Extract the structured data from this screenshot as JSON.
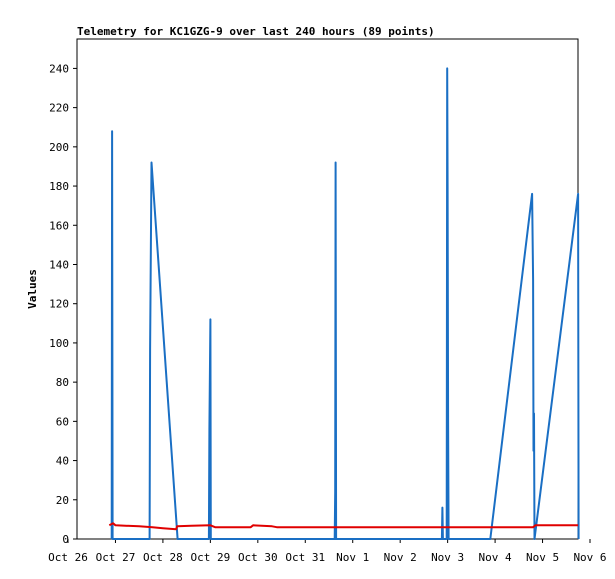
{
  "chart_data": {
    "type": "line",
    "title": "Telemetry for KC1GZG-9 over last 240 hours (89 points)",
    "xlabel": "",
    "ylabel": "Values",
    "x_domain_days": [
      0,
      11
    ],
    "ylim": [
      0,
      255
    ],
    "x_ticks": [
      {
        "day": 0,
        "label": "Oct 26"
      },
      {
        "day": 1,
        "label": "Oct 27"
      },
      {
        "day": 2,
        "label": "Oct 28"
      },
      {
        "day": 3,
        "label": "Oct 29"
      },
      {
        "day": 4,
        "label": "Oct 30"
      },
      {
        "day": 5,
        "label": "Oct 31"
      },
      {
        "day": 6,
        "label": "Nov 1"
      },
      {
        "day": 7,
        "label": "Nov 2"
      },
      {
        "day": 8,
        "label": "Nov 3"
      },
      {
        "day": 9,
        "label": "Nov 4"
      },
      {
        "day": 10,
        "label": "Nov 5"
      },
      {
        "day": 11,
        "label": "Nov 6"
      }
    ],
    "y_ticks": [
      0,
      20,
      40,
      60,
      80,
      100,
      120,
      140,
      160,
      180,
      200,
      220,
      240
    ],
    "colors": {
      "series1": "#1a6fc4",
      "series2": "#e00000"
    },
    "series": [
      {
        "color": "#1a6fc4",
        "points": [
          [
            0.92,
            0
          ],
          [
            0.93,
            208
          ],
          [
            0.94,
            0
          ],
          [
            1.72,
            0
          ],
          [
            1.73,
            97
          ],
          [
            1.76,
            192
          ],
          [
            2.31,
            0
          ],
          [
            2.97,
            0
          ],
          [
            2.98,
            56
          ],
          [
            3.0,
            112
          ],
          [
            3.01,
            0
          ],
          [
            5.62,
            0
          ],
          [
            5.63,
            24
          ],
          [
            5.64,
            192
          ],
          [
            5.65,
            0
          ],
          [
            7.88,
            0
          ],
          [
            7.89,
            16
          ],
          [
            7.9,
            0
          ],
          [
            7.98,
            0
          ],
          [
            7.99,
            240
          ],
          [
            8.0,
            180
          ],
          [
            8.01,
            60
          ],
          [
            8.02,
            0
          ],
          [
            8.9,
            0
          ],
          [
            9.78,
            176
          ],
          [
            9.8,
            132
          ],
          [
            9.81,
            45
          ],
          [
            9.82,
            64
          ],
          [
            9.83,
            0
          ],
          [
            10.75,
            176
          ],
          [
            10.76,
            0
          ]
        ]
      },
      {
        "color": "#e00000",
        "points": [
          [
            0.87,
            7
          ],
          [
            0.95,
            8
          ],
          [
            1.0,
            7
          ],
          [
            1.5,
            6.5
          ],
          [
            1.78,
            6
          ],
          [
            2.0,
            5.5
          ],
          [
            2.28,
            5
          ],
          [
            2.3,
            6.5
          ],
          [
            2.6,
            6.8
          ],
          [
            3.0,
            7
          ],
          [
            3.1,
            6
          ],
          [
            3.85,
            6
          ],
          [
            3.9,
            7
          ],
          [
            4.3,
            6.5
          ],
          [
            4.4,
            6
          ],
          [
            5.0,
            6
          ],
          [
            6.0,
            6
          ],
          [
            6.5,
            6
          ],
          [
            7.0,
            6
          ],
          [
            7.5,
            6
          ],
          [
            8.0,
            6
          ],
          [
            8.5,
            6
          ],
          [
            9.0,
            6
          ],
          [
            9.5,
            6
          ],
          [
            9.8,
            6
          ],
          [
            9.85,
            7
          ],
          [
            10.3,
            7
          ],
          [
            10.75,
            7
          ]
        ]
      }
    ]
  }
}
